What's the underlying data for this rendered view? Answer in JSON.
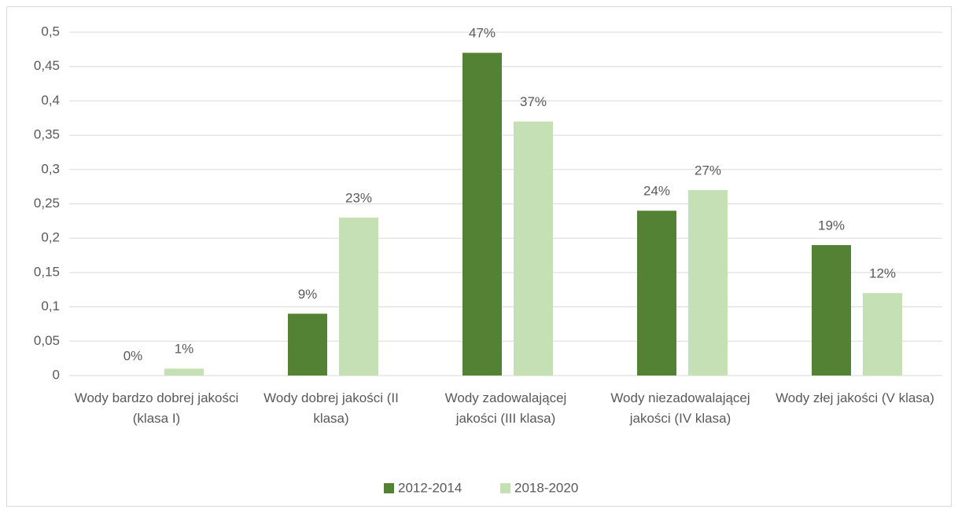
{
  "chart_data": {
    "type": "bar",
    "categories": [
      "Wody bardzo dobrej jakości (klasa I)",
      "Wody dobrej jakości (II klasa)",
      "Wody zadowalającej jakości (III klasa)",
      "Wody niezadowalającej jakości (IV klasa)",
      "Wody złej jakości (V klasa)"
    ],
    "series": [
      {
        "name": "2012-2014",
        "color": "#548235",
        "values": [
          0,
          0.09,
          0.47,
          0.24,
          0.19
        ],
        "value_labels": [
          "0%",
          "9%",
          "47%",
          "24%",
          "19%"
        ]
      },
      {
        "name": "2018-2020",
        "color": "#c5e0b4",
        "values": [
          0.01,
          0.23,
          0.37,
          0.27,
          0.12
        ],
        "value_labels": [
          "1%",
          "23%",
          "37%",
          "27%",
          "12%"
        ]
      }
    ],
    "ylim": [
      0,
      0.5
    ],
    "yticks": [
      0,
      {
        "value": 0.05,
        "label": "0,05"
      },
      {
        "value": 0.1,
        "label": "0,1"
      },
      {
        "value": 0.15,
        "label": "0,15"
      },
      {
        "value": 0.2,
        "label": "0,2"
      },
      {
        "value": 0.25,
        "label": "0,25"
      },
      {
        "value": 0.3,
        "label": "0,3"
      },
      {
        "value": 0.35,
        "label": "0,35"
      },
      {
        "value": 0.4,
        "label": "0,4"
      },
      {
        "value": 0.45,
        "label": "0,45"
      },
      {
        "value": 0.5,
        "label": "0,5"
      }
    ],
    "grid": true,
    "legend": "bottom"
  }
}
